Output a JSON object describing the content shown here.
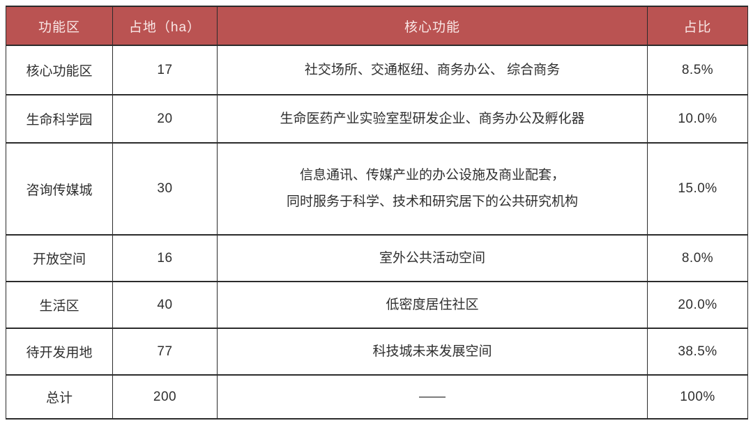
{
  "table": {
    "colors": {
      "header_bg": "#BA5352",
      "header_text": "#F9E7E6",
      "body_text": "#2F2F2F",
      "border_color": "#2B2B2B"
    },
    "columns": [
      {
        "label": "功能区"
      },
      {
        "label": "占地（ha）"
      },
      {
        "label": "核心功能"
      },
      {
        "label": "占比"
      }
    ],
    "rows": [
      {
        "zone": "核心功能区",
        "area": "17",
        "functions": [
          "社交场所、交通枢纽、商务办公、 综合商务"
        ],
        "share": "8.5%"
      },
      {
        "zone": "生命科学园",
        "area": "20",
        "functions": [
          "生命医药产业实验室型研发企业、商务办公及孵化器"
        ],
        "share": "10.0%"
      },
      {
        "zone": "咨询传媒城",
        "area": "30",
        "functions": [
          "信息通讯、传媒产业的办公设施及商业配套，",
          "同时服务于科学、技术和研究居下的公共研究机构"
        ],
        "share": "15.0%"
      },
      {
        "zone": "开放空间",
        "area": "16",
        "functions": [
          "室外公共活动空间"
        ],
        "share": "8.0%"
      },
      {
        "zone": "生活区",
        "area": "40",
        "functions": [
          "低密度居住社区"
        ],
        "share": "20.0%"
      },
      {
        "zone": "待开发用地",
        "area": "77",
        "functions": [
          "科技城未来发展空间"
        ],
        "share": "38.5%"
      },
      {
        "zone": "总计",
        "area": "200",
        "functions": [
          "——"
        ],
        "share": "100%"
      }
    ]
  }
}
